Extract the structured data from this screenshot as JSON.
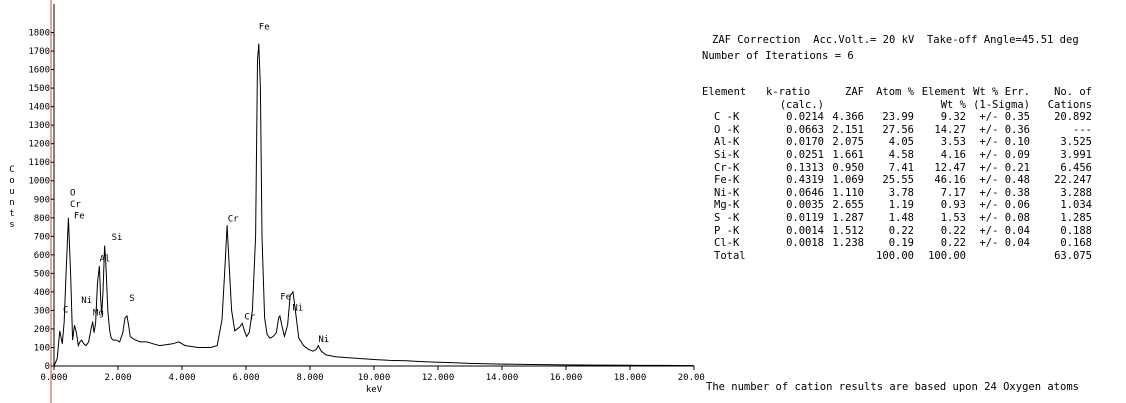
{
  "chart_data": {
    "type": "line",
    "xlabel": "keV",
    "ylabel": "Counts",
    "xlim": [
      0,
      20
    ],
    "ylim": [
      0,
      1900
    ],
    "xticks": [
      "0.000",
      "2.000",
      "4.000",
      "6.000",
      "8.000",
      "10.000",
      "12.000",
      "14.000",
      "16.000",
      "18.000",
      "20.000"
    ],
    "yticks": [
      0,
      100,
      200,
      300,
      400,
      500,
      600,
      700,
      800,
      900,
      1000,
      1100,
      1200,
      1300,
      1400,
      1500,
      1600,
      1700,
      1800
    ],
    "series": [
      {
        "x": [
          0.0,
          0.1,
          0.18,
          0.26,
          0.32,
          0.38,
          0.45,
          0.52,
          0.58,
          0.64,
          0.7,
          0.76,
          0.81,
          0.86,
          0.93,
          1.0,
          1.08,
          1.16,
          1.21,
          1.25,
          1.3,
          1.36,
          1.42,
          1.46,
          1.49,
          1.53,
          1.58,
          1.62,
          1.68,
          1.74,
          1.79,
          1.85,
          1.95,
          2.05,
          2.15,
          2.22,
          2.28,
          2.33,
          2.38,
          2.45,
          2.55,
          2.7,
          2.9,
          3.1,
          3.3,
          3.5,
          3.7,
          3.9,
          4.1,
          4.3,
          4.5,
          4.7,
          4.9,
          5.1,
          5.25,
          5.33,
          5.41,
          5.47,
          5.55,
          5.65,
          5.8,
          5.88,
          5.95,
          6.02,
          6.1,
          6.2,
          6.3,
          6.36,
          6.4,
          6.45,
          6.5,
          6.58,
          6.66,
          6.75,
          6.85,
          6.95,
          7.02,
          7.06,
          7.12,
          7.2,
          7.3,
          7.38,
          7.47,
          7.55,
          7.65,
          7.8,
          7.95,
          8.1,
          8.2,
          8.26,
          8.35,
          8.5,
          8.8,
          9.2,
          9.6,
          10.0,
          10.5,
          11.0,
          11.5,
          12.0,
          12.5,
          13.0,
          14.0,
          15.0,
          16.0,
          17.0,
          18.0,
          19.0,
          20.0
        ],
        "y": [
          0,
          40,
          190,
          120,
          240,
          520,
          800,
          500,
          140,
          220,
          180,
          110,
          130,
          140,
          120,
          110,
          130,
          200,
          240,
          180,
          230,
          450,
          540,
          360,
          280,
          400,
          650,
          560,
          300,
          190,
          150,
          140,
          140,
          130,
          180,
          260,
          270,
          220,
          160,
          150,
          140,
          130,
          130,
          120,
          110,
          115,
          120,
          130,
          110,
          105,
          100,
          100,
          100,
          110,
          250,
          500,
          760,
          560,
          300,
          190,
          210,
          230,
          190,
          160,
          180,
          300,
          700,
          1650,
          1740,
          1500,
          700,
          260,
          170,
          150,
          160,
          180,
          260,
          270,
          220,
          160,
          220,
          380,
          400,
          290,
          150,
          110,
          90,
          80,
          90,
          110,
          80,
          60,
          50,
          45,
          40,
          35,
          30,
          28,
          24,
          20,
          18,
          14,
          10,
          8,
          6,
          5,
          4,
          3,
          2
        ]
      }
    ],
    "labels": [
      {
        "text": "C",
        "x": 0.28,
        "y": 290
      },
      {
        "text": "O",
        "x": 0.5,
        "y": 920
      },
      {
        "text": "Cr",
        "x": 0.5,
        "y": 858
      },
      {
        "text": "Fe",
        "x": 0.62,
        "y": 796
      },
      {
        "text": "Ni",
        "x": 0.85,
        "y": 340
      },
      {
        "text": "Mg",
        "x": 1.22,
        "y": 272
      },
      {
        "text": "Al",
        "x": 1.42,
        "y": 565
      },
      {
        "text": "Si",
        "x": 1.8,
        "y": 680
      },
      {
        "text": "S",
        "x": 2.35,
        "y": 350
      },
      {
        "text": "Cr",
        "x": 5.43,
        "y": 780
      },
      {
        "text": "Cr",
        "x": 5.95,
        "y": 250
      },
      {
        "text": "Fe",
        "x": 6.4,
        "y": 1815
      },
      {
        "text": "Fe",
        "x": 7.07,
        "y": 360
      },
      {
        "text": "Ni",
        "x": 7.45,
        "y": 300
      },
      {
        "text": "Ni",
        "x": 8.26,
        "y": 130
      }
    ]
  },
  "panel": {
    "header_line1": "ZAF Correction  Acc.Volt.= 20 kV  Take-off Angle=45.51 deg",
    "header_line2": "Number of Iterations = 6",
    "columns": [
      [
        "Element",
        ""
      ],
      [
        "k-ratio",
        "(calc.)"
      ],
      [
        "ZAF",
        ""
      ],
      [
        "Atom %",
        ""
      ],
      [
        "Element",
        "Wt %"
      ],
      [
        "Wt % Err.",
        "(1-Sigma)"
      ],
      [
        "No. of",
        "Cations"
      ]
    ],
    "rows": [
      [
        "C -K",
        "0.0214",
        "4.366",
        "23.99",
        "9.32",
        "+/- 0.35",
        "20.892"
      ],
      [
        "O -K",
        "0.0663",
        "2.151",
        "27.56",
        "14.27",
        "+/- 0.36",
        "---"
      ],
      [
        "Al-K",
        "0.0170",
        "2.075",
        "4.05",
        "3.53",
        "+/- 0.10",
        "3.525"
      ],
      [
        "Si-K",
        "0.0251",
        "1.661",
        "4.58",
        "4.16",
        "+/- 0.09",
        "3.991"
      ],
      [
        "Cr-K",
        "0.1313",
        "0.950",
        "7.41",
        "12.47",
        "+/- 0.21",
        "6.456"
      ],
      [
        "Fe-K",
        "0.4319",
        "1.069",
        "25.55",
        "46.16",
        "+/- 0.48",
        "22.247"
      ],
      [
        "Ni-K",
        "0.0646",
        "1.110",
        "3.78",
        "7.17",
        "+/- 0.38",
        "3.288"
      ],
      [
        "Mg-K",
        "0.0035",
        "2.655",
        "1.19",
        "0.93",
        "+/- 0.06",
        "1.034"
      ],
      [
        "S -K",
        "0.0119",
        "1.287",
        "1.48",
        "1.53",
        "+/- 0.08",
        "1.285"
      ],
      [
        "P -K",
        "0.0014",
        "1.512",
        "0.22",
        "0.22",
        "+/- 0.04",
        "0.188"
      ],
      [
        "Cl-K",
        "0.0018",
        "1.238",
        "0.19",
        "0.22",
        "+/- 0.04",
        "0.168"
      ],
      [
        "Total",
        "",
        "",
        "100.00",
        "100.00",
        "",
        "63.075"
      ]
    ],
    "footer": "The number of cation results are based upon 24 Oxygen atoms"
  }
}
